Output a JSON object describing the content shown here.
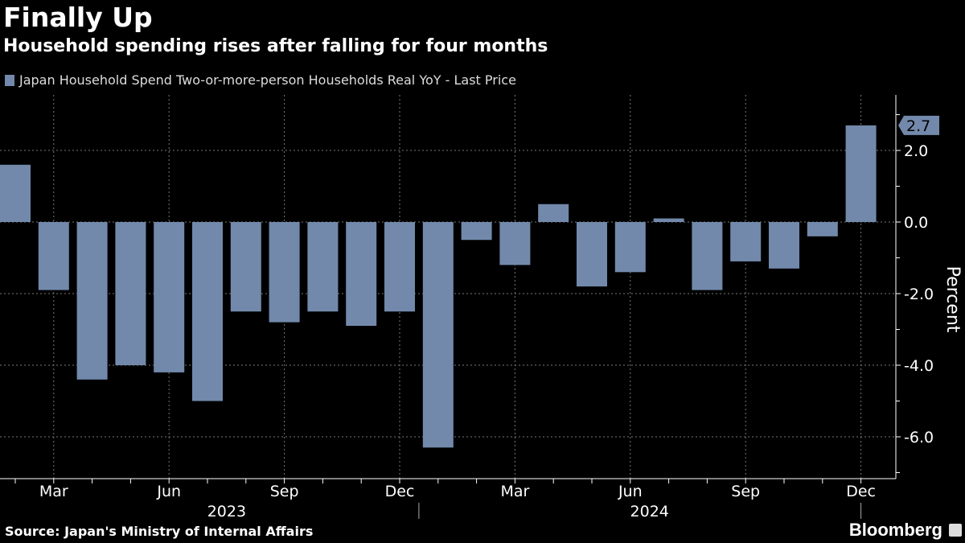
{
  "chart_data": {
    "type": "bar",
    "title": "Finally Up",
    "subtitle": "Household spending rises after falling for four months",
    "legend": [
      "Japan Household Spend Two-or-more-person Households Real YoY - Last Price"
    ],
    "ylabel": "Percent",
    "ylim": [
      -7,
      3.5
    ],
    "yticks": [
      "2.0",
      "0.0",
      "-2.0",
      "-4.0",
      "-6.0"
    ],
    "ytick_values": [
      2,
      0,
      -2,
      -4,
      -6
    ],
    "categories": [
      "Feb 2023",
      "Mar 2023",
      "Apr 2023",
      "May 2023",
      "Jun 2023",
      "Jul 2023",
      "Aug 2023",
      "Sep 2023",
      "Oct 2023",
      "Nov 2023",
      "Dec 2023",
      "Jan 2024",
      "Feb 2024",
      "Mar 2024",
      "Apr 2024",
      "May 2024",
      "Jun 2024",
      "Jul 2024",
      "Aug 2024",
      "Sep 2024",
      "Oct 2024",
      "Nov 2024",
      "Dec 2024"
    ],
    "values": [
      1.6,
      -1.9,
      -4.4,
      -4.0,
      -4.2,
      -5.0,
      -2.5,
      -2.8,
      -2.5,
      -2.9,
      -2.5,
      -6.3,
      -0.5,
      -1.2,
      0.5,
      -1.8,
      -1.4,
      0.1,
      -1.9,
      -1.1,
      -1.3,
      -0.4,
      2.7
    ],
    "xtick_labels": [
      {
        "label": "Mar",
        "index": 1
      },
      {
        "label": "Jun",
        "index": 4
      },
      {
        "label": "Sep",
        "index": 7
      },
      {
        "label": "Dec",
        "index": 10
      },
      {
        "label": "Mar",
        "index": 13
      },
      {
        "label": "Jun",
        "index": 16
      },
      {
        "label": "Sep",
        "index": 19
      },
      {
        "label": "Dec",
        "index": 22
      }
    ],
    "years": [
      {
        "label": "2023",
        "center": 5.5
      },
      {
        "label": "2024",
        "center": 16.5
      }
    ],
    "last_value_label": "2.7",
    "bar_color": "#7289ab",
    "grid": true
  },
  "source": "Source: Japan's Ministry of Internal Affairs",
  "brand": "Bloomberg"
}
